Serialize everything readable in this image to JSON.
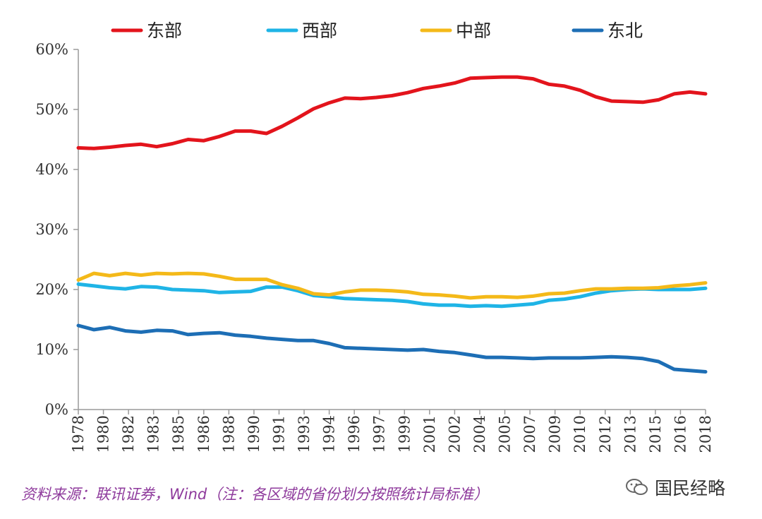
{
  "chart_data": {
    "type": "line",
    "title": "",
    "xlabel": "",
    "ylabel": "",
    "ylim": [
      0,
      60
    ],
    "y_ticks": [
      0,
      10,
      20,
      30,
      40,
      50,
      60
    ],
    "y_tick_labels": [
      "0%",
      "10%",
      "20%",
      "30%",
      "40%",
      "50%",
      "60%"
    ],
    "x_range": [
      1978,
      2018
    ],
    "x_tick_labels": [
      "1978",
      "1980",
      "1982",
      "1983",
      "1985",
      "1986",
      "1988",
      "1990",
      "1991",
      "1993",
      "1994",
      "1996",
      "1997",
      "1999",
      "2001",
      "2002",
      "2004",
      "2005",
      "2007",
      "2009",
      "2010",
      "2012",
      "2013",
      "2015",
      "2016",
      "2018"
    ],
    "legend_position": "top",
    "grid": false,
    "series": [
      {
        "name": "东部",
        "color": "#e3141c",
        "values": [
          43.6,
          43.5,
          43.7,
          44.0,
          44.2,
          43.8,
          44.3,
          45.0,
          44.8,
          45.5,
          46.4,
          46.4,
          46.0,
          47.2,
          48.6,
          50.1,
          51.1,
          51.9,
          51.8,
          52.0,
          52.3,
          52.8,
          53.5,
          53.9,
          54.4,
          55.2,
          55.3,
          55.4,
          55.4,
          55.1,
          54.2,
          53.9,
          53.2,
          52.1,
          51.4,
          51.3,
          51.2,
          51.6,
          52.6,
          52.9,
          52.6
        ]
      },
      {
        "name": "西部",
        "color": "#1fb4e6",
        "values": [
          20.9,
          20.6,
          20.3,
          20.1,
          20.5,
          20.4,
          20.0,
          19.9,
          19.8,
          19.5,
          19.6,
          19.7,
          20.4,
          20.4,
          19.8,
          19.0,
          18.8,
          18.5,
          18.4,
          18.3,
          18.2,
          18.0,
          17.6,
          17.4,
          17.4,
          17.2,
          17.3,
          17.2,
          17.4,
          17.6,
          18.2,
          18.4,
          18.8,
          19.4,
          19.8,
          20.0,
          20.1,
          20.0,
          20.0,
          20.0,
          20.2
        ]
      },
      {
        "name": "中部",
        "color": "#f4b919",
        "values": [
          21.6,
          22.7,
          22.3,
          22.7,
          22.4,
          22.7,
          22.6,
          22.7,
          22.6,
          22.2,
          21.7,
          21.7,
          21.7,
          20.8,
          20.2,
          19.3,
          19.1,
          19.6,
          19.9,
          19.9,
          19.8,
          19.6,
          19.2,
          19.1,
          18.9,
          18.6,
          18.8,
          18.8,
          18.7,
          18.9,
          19.3,
          19.4,
          19.8,
          20.1,
          20.1,
          20.2,
          20.2,
          20.3,
          20.6,
          20.8,
          21.1
        ]
      },
      {
        "name": "东北",
        "color": "#1d6eb5",
        "values": [
          14.0,
          13.3,
          13.7,
          13.1,
          12.9,
          13.2,
          13.1,
          12.5,
          12.7,
          12.8,
          12.4,
          12.2,
          11.9,
          11.7,
          11.5,
          11.5,
          11.0,
          10.3,
          10.2,
          10.1,
          10.0,
          9.9,
          10.0,
          9.7,
          9.5,
          9.1,
          8.7,
          8.7,
          8.6,
          8.5,
          8.6,
          8.6,
          8.6,
          8.7,
          8.8,
          8.7,
          8.5,
          8.0,
          6.7,
          6.5,
          6.3
        ]
      }
    ]
  },
  "footer": {
    "source": "资料来源：联讯证券，Wind（注：各区域的省份划分按照统计局标准）",
    "watermark": "国民经略"
  }
}
